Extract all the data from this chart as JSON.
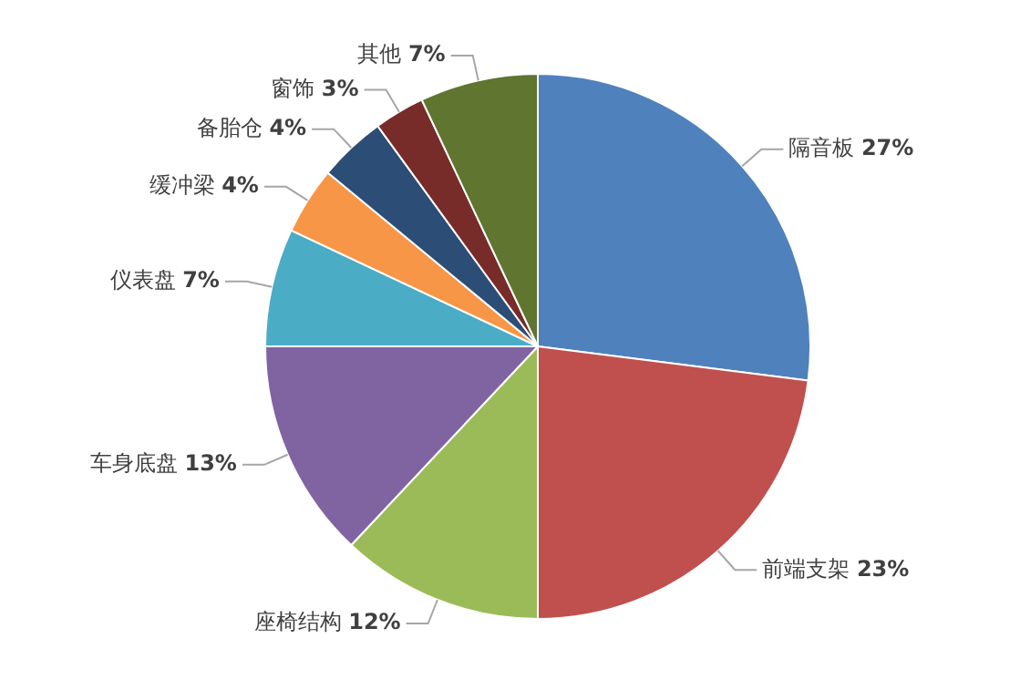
{
  "chart_data": {
    "type": "pie",
    "categories": [
      "隔音板",
      "前端支架",
      "座椅结构",
      "车身底盘",
      "仪表盘",
      "缓冲梁",
      "备胎仓",
      "窗饰",
      "其他"
    ],
    "values": [
      27,
      23,
      12,
      13,
      7,
      4,
      4,
      3,
      7
    ],
    "value_labels": [
      "27%",
      "23%",
      "12%",
      "13%",
      "7%",
      "4%",
      "4%",
      "3%",
      "7%"
    ],
    "colors": [
      "#4f81bd",
      "#c0504d",
      "#9bbb59",
      "#8064a2",
      "#4bacc6",
      "#f79646",
      "#2c4d75",
      "#772c2a",
      "#5f7530"
    ],
    "legend": false
  }
}
